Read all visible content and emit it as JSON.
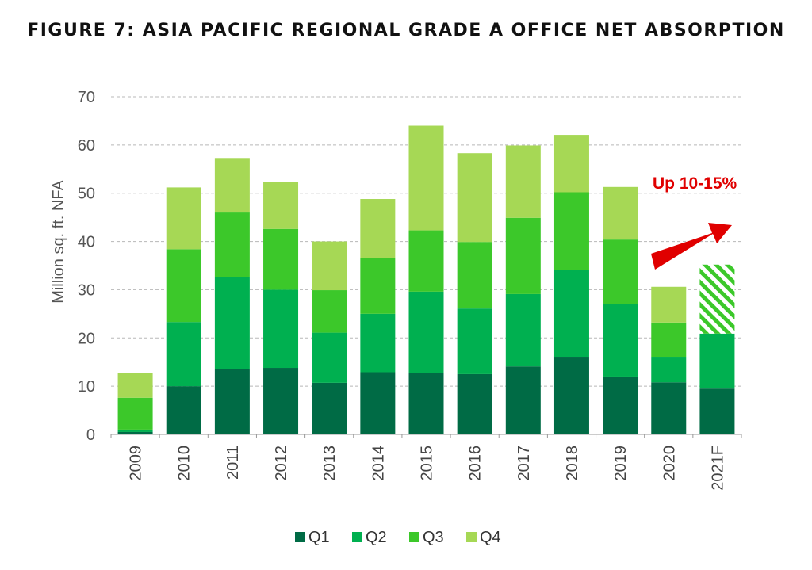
{
  "chart_data": {
    "type": "bar",
    "stacked": true,
    "title": "FIGURE 7: ASIA PACIFIC REGIONAL GRADE A OFFICE NET ABSORPTION",
    "ylabel": "Million sq. ft. NFA",
    "xlabel": "",
    "ylim": [
      0,
      70
    ],
    "yticks": [
      0,
      10,
      20,
      30,
      40,
      50,
      60,
      70
    ],
    "grid": true,
    "legend_position": "bottom",
    "categories": [
      "2009",
      "2010",
      "2011",
      "2012",
      "2013",
      "2014",
      "2015",
      "2016",
      "2017",
      "2018",
      "2019",
      "2020",
      "2021F"
    ],
    "series": [
      {
        "name": "Q1",
        "color": "#006b45",
        "values": [
          0.5,
          10,
          13.5,
          13.8,
          10.7,
          12.9,
          12.7,
          12.5,
          14.1,
          16.1,
          12,
          10.8,
          9.5
        ]
      },
      {
        "name": "Q2",
        "color": "#00b050",
        "values": [
          0.5,
          13.3,
          19.2,
          16.2,
          10.4,
          12.1,
          16.9,
          13.6,
          15,
          18,
          15,
          5.3,
          11.4
        ]
      },
      {
        "name": "Q3",
        "color": "#3cc82a",
        "values": [
          6.6,
          15.1,
          13.3,
          12.6,
          8.8,
          11.5,
          12.7,
          13.8,
          15.8,
          16.1,
          13.4,
          7.1,
          0
        ]
      },
      {
        "name": "Q4",
        "color": "#a6d855",
        "values": [
          5.2,
          12.8,
          11.3,
          9.8,
          10.1,
          12.3,
          21.7,
          18.4,
          15,
          11.9,
          10.9,
          7.4,
          0
        ]
      }
    ],
    "forecast_remainder": {
      "category": "2021F",
      "value": 14.3,
      "color": "#3cc82a",
      "pattern": "diagonal-hatch"
    },
    "annotation": {
      "text": "Up 10-15%",
      "color": "#e00000",
      "arrow": "up-right"
    }
  }
}
